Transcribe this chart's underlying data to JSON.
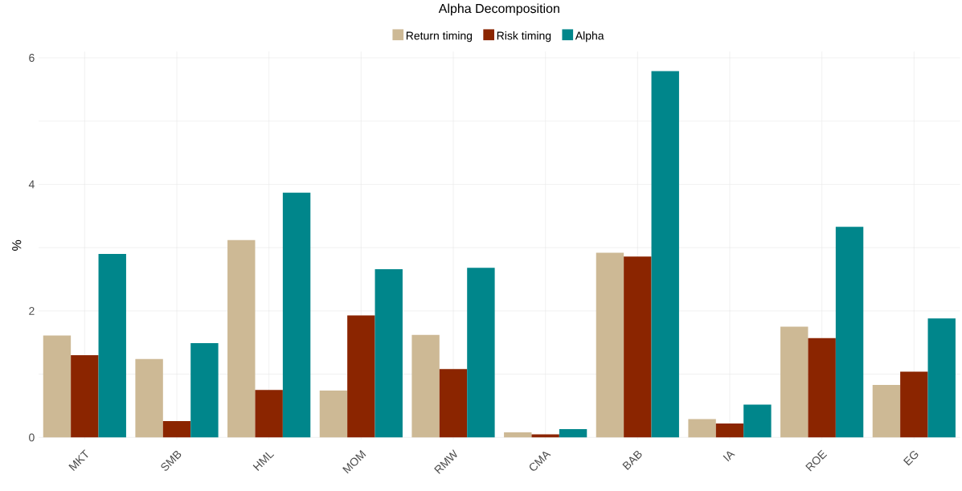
{
  "chart_data": {
    "type": "bar",
    "title": "Alpha Decomposition",
    "ylabel": "%",
    "categories": [
      "MKT",
      "SMB",
      "HML",
      "MOM",
      "RMW",
      "CMA",
      "BAB",
      "IA",
      "ROE",
      "EG"
    ],
    "series": [
      {
        "name": "Return timing",
        "color": "#cdb995",
        "values": [
          1.61,
          1.24,
          3.12,
          0.74,
          1.62,
          0.08,
          2.92,
          0.29,
          1.75,
          0.83
        ]
      },
      {
        "name": "Risk timing",
        "color": "#8b2500",
        "values": [
          1.3,
          0.26,
          0.75,
          1.93,
          1.08,
          0.05,
          2.86,
          0.22,
          1.57,
          1.04
        ]
      },
      {
        "name": "Alpha",
        "color": "#00868b",
        "values": [
          2.9,
          1.49,
          3.87,
          2.66,
          2.68,
          0.13,
          5.79,
          0.52,
          3.33,
          1.88
        ]
      }
    ],
    "ylim": [
      -0.03,
      6.1
    ],
    "yticks": [
      0,
      {
        "value": 1,
        "label": null
      },
      2,
      {
        "value": 3,
        "label": null
      },
      4,
      {
        "value": 5,
        "label": null
      },
      6
    ],
    "grid": true,
    "legend": "top"
  }
}
